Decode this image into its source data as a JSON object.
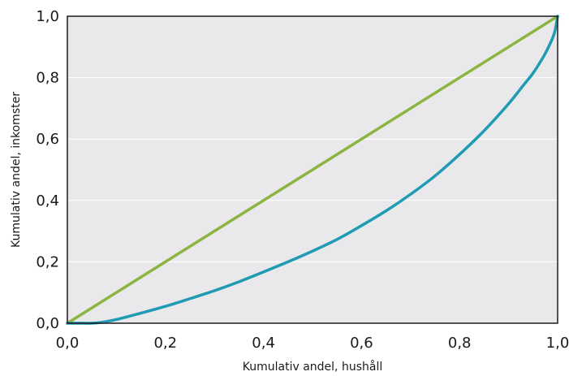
{
  "chart_data": {
    "type": "line",
    "title": "",
    "xlabel": "Kumulativ andel, hushåll",
    "ylabel": "Kumulativ andel, inkomster",
    "xlim": [
      0,
      1
    ],
    "ylim": [
      0,
      1
    ],
    "x_ticks": [
      "0,0",
      "0,2",
      "0,4",
      "0,6",
      "0,8",
      "1,0"
    ],
    "y_ticks": [
      "0,0",
      "0,2",
      "0,4",
      "0,6",
      "0,8",
      "1,0"
    ],
    "grid": "horizontal",
    "legend": "none",
    "colors": {
      "plot_background": "#e9e9ec",
      "gridline": "#ffffff",
      "equality_line": "#8db443",
      "lorenz_curve": "#1f9bb3",
      "frame": "#1a1a1a"
    },
    "series": [
      {
        "x": [
          0,
          1
        ],
        "y": [
          0,
          1
        ]
      },
      {
        "x": [
          0,
          0.02,
          0.05,
          0.07,
          0.1,
          0.15,
          0.2,
          0.25,
          0.3,
          0.35,
          0.4,
          0.45,
          0.5,
          0.55,
          0.6,
          0.65,
          0.7,
          0.75,
          0.8,
          0.85,
          0.9,
          0.93,
          0.95,
          0.97,
          0.98,
          0.99,
          0.995,
          1.0
        ],
        "y": [
          0,
          0,
          0,
          0.003,
          0.012,
          0.033,
          0.055,
          0.08,
          0.106,
          0.135,
          0.167,
          0.2,
          0.235,
          0.273,
          0.318,
          0.366,
          0.42,
          0.48,
          0.55,
          0.627,
          0.715,
          0.775,
          0.815,
          0.865,
          0.895,
          0.93,
          0.955,
          1.0
        ]
      }
    ]
  }
}
